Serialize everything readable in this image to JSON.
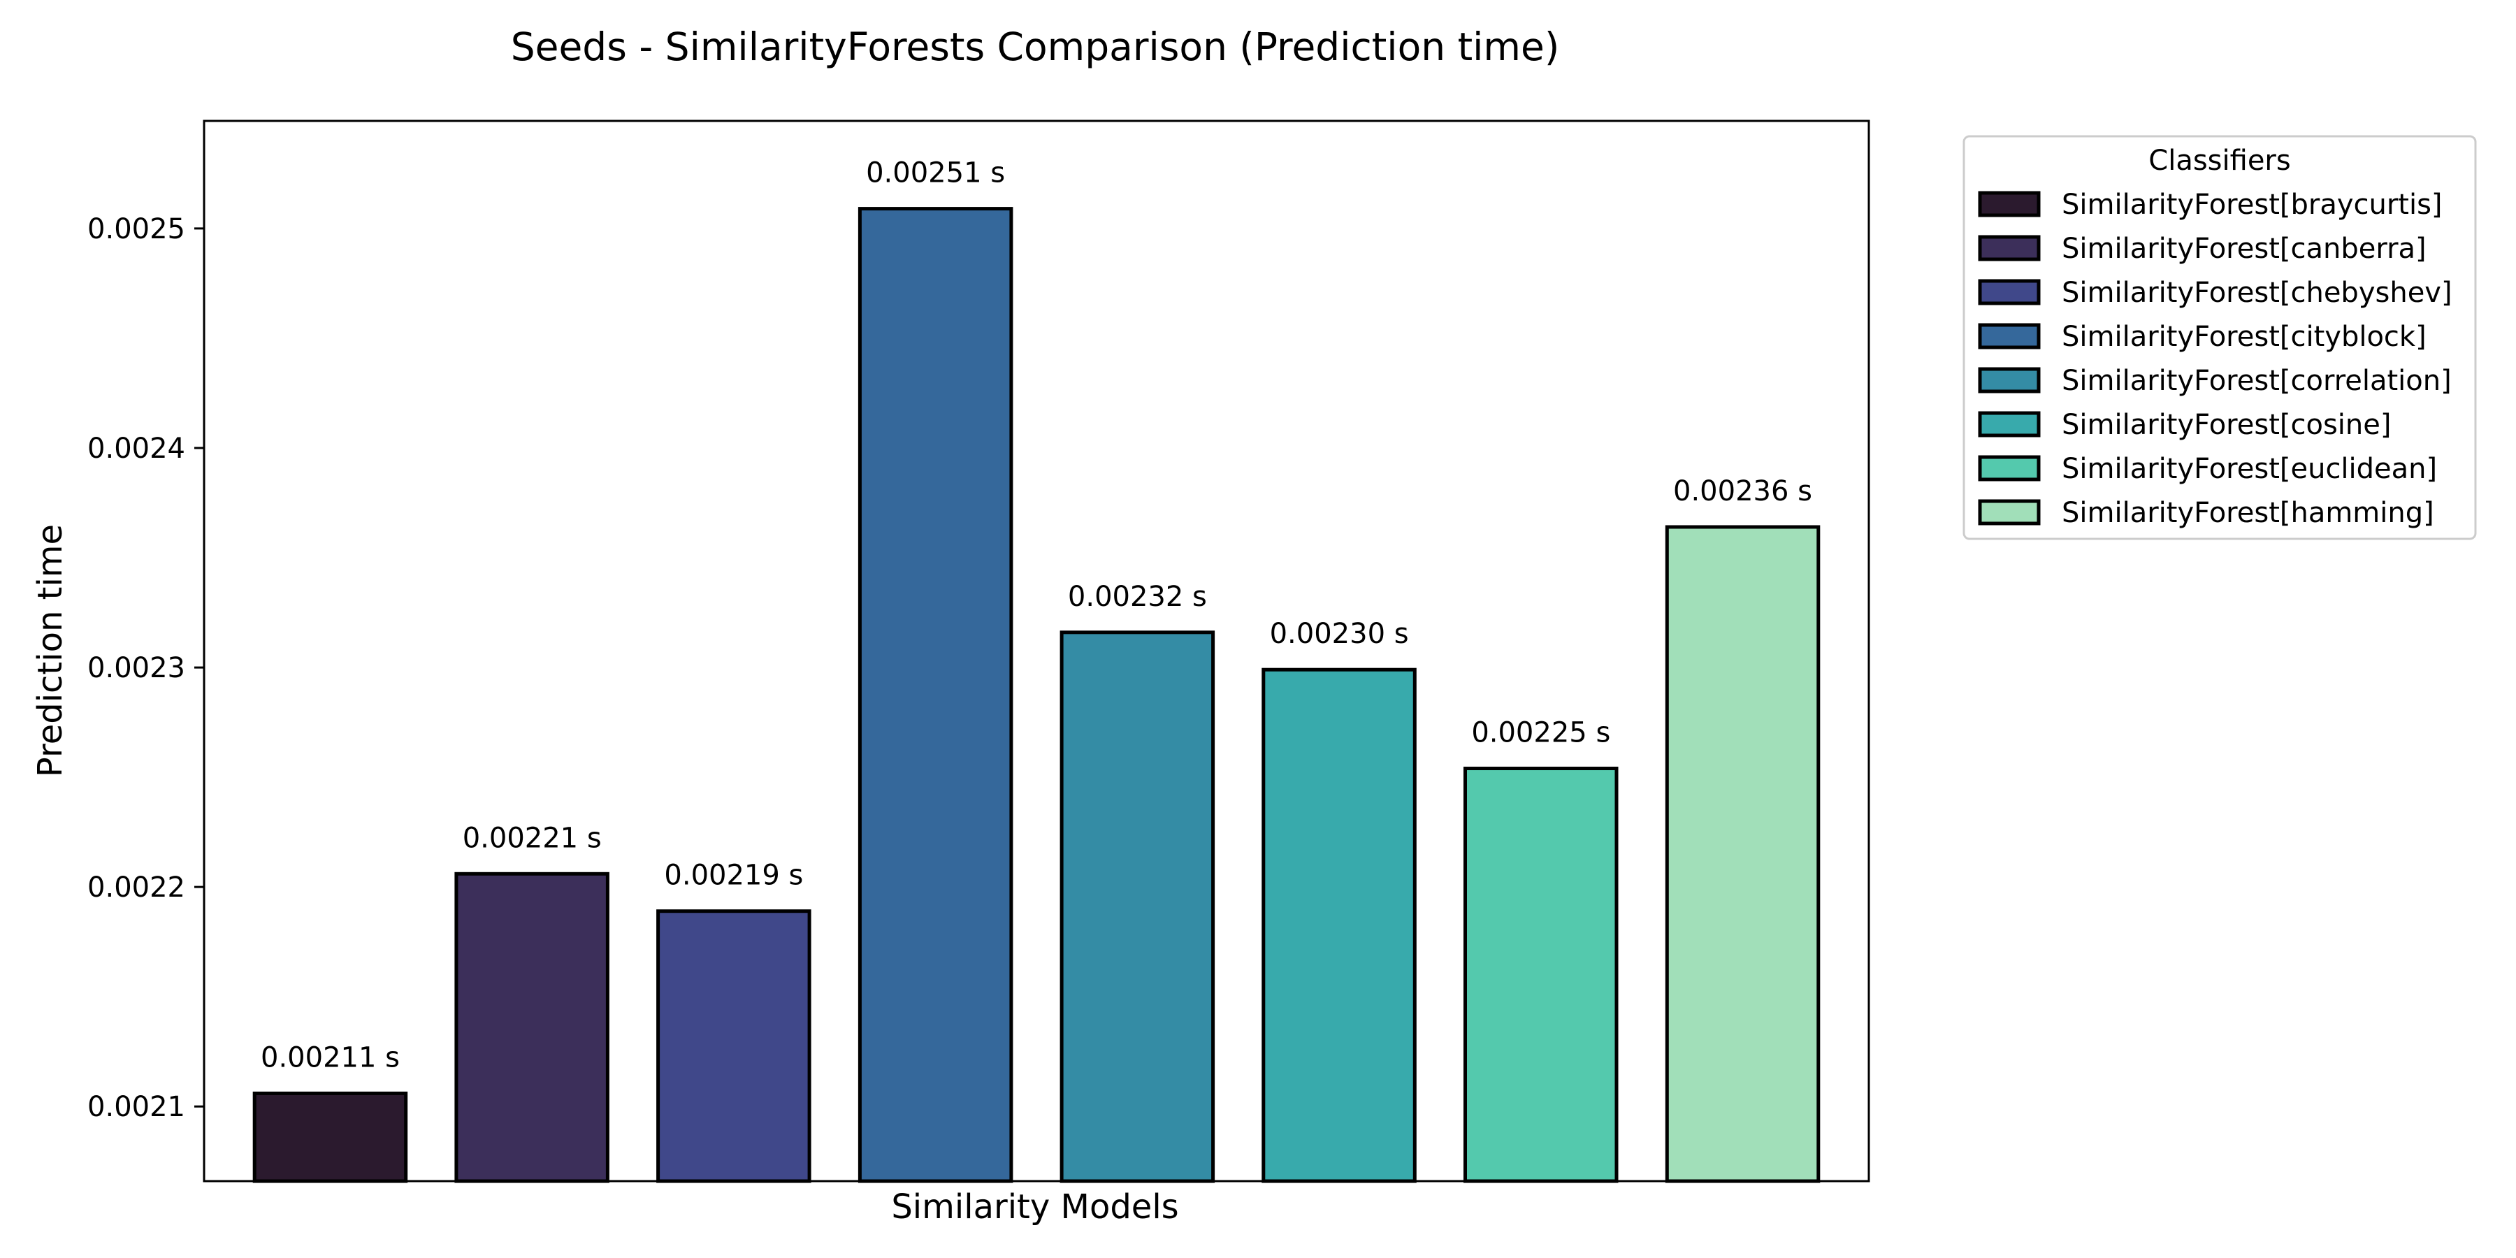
{
  "chart_data": {
    "type": "bar",
    "title": "Seeds - SimilarityForests Comparison (Prediction time)",
    "xlabel": "Similarity Models",
    "ylabel": "Prediction time",
    "ylim": [
      0.002066,
      0.002549
    ],
    "yticks": [
      0.0021,
      0.0022,
      0.0023,
      0.0024,
      0.0025
    ],
    "ytick_labels": [
      "0.0021",
      "0.0022",
      "0.0023",
      "0.0024",
      "0.0025"
    ],
    "grid": false,
    "legend": {
      "title": "Classifiers",
      "placement": "outside-top-right"
    },
    "series": [
      {
        "name": "SimilarityForest[braycurtis]",
        "value": 0.002106,
        "label": "0.00211 s",
        "color": "#2b1a2e"
      },
      {
        "name": "SimilarityForest[canberra]",
        "value": 0.002206,
        "label": "0.00221 s",
        "color": "#3c2f5a"
      },
      {
        "name": "SimilarityForest[chebyshev]",
        "value": 0.002189,
        "label": "0.00219 s",
        "color": "#40488a"
      },
      {
        "name": "SimilarityForest[cityblock]",
        "value": 0.002509,
        "label": "0.00251 s",
        "color": "#35689b"
      },
      {
        "name": "SimilarityForest[correlation]",
        "value": 0.002316,
        "label": "0.00232 s",
        "color": "#348ca5"
      },
      {
        "name": "SimilarityForest[cosine]",
        "value": 0.002299,
        "label": "0.00230 s",
        "color": "#38aaac"
      },
      {
        "name": "SimilarityForest[euclidean]",
        "value": 0.002254,
        "label": "0.00225 s",
        "color": "#54c9ad"
      },
      {
        "name": "SimilarityForest[hamming]",
        "value": 0.002364,
        "label": "0.00236 s",
        "color": "#a1dfb9"
      }
    ]
  }
}
